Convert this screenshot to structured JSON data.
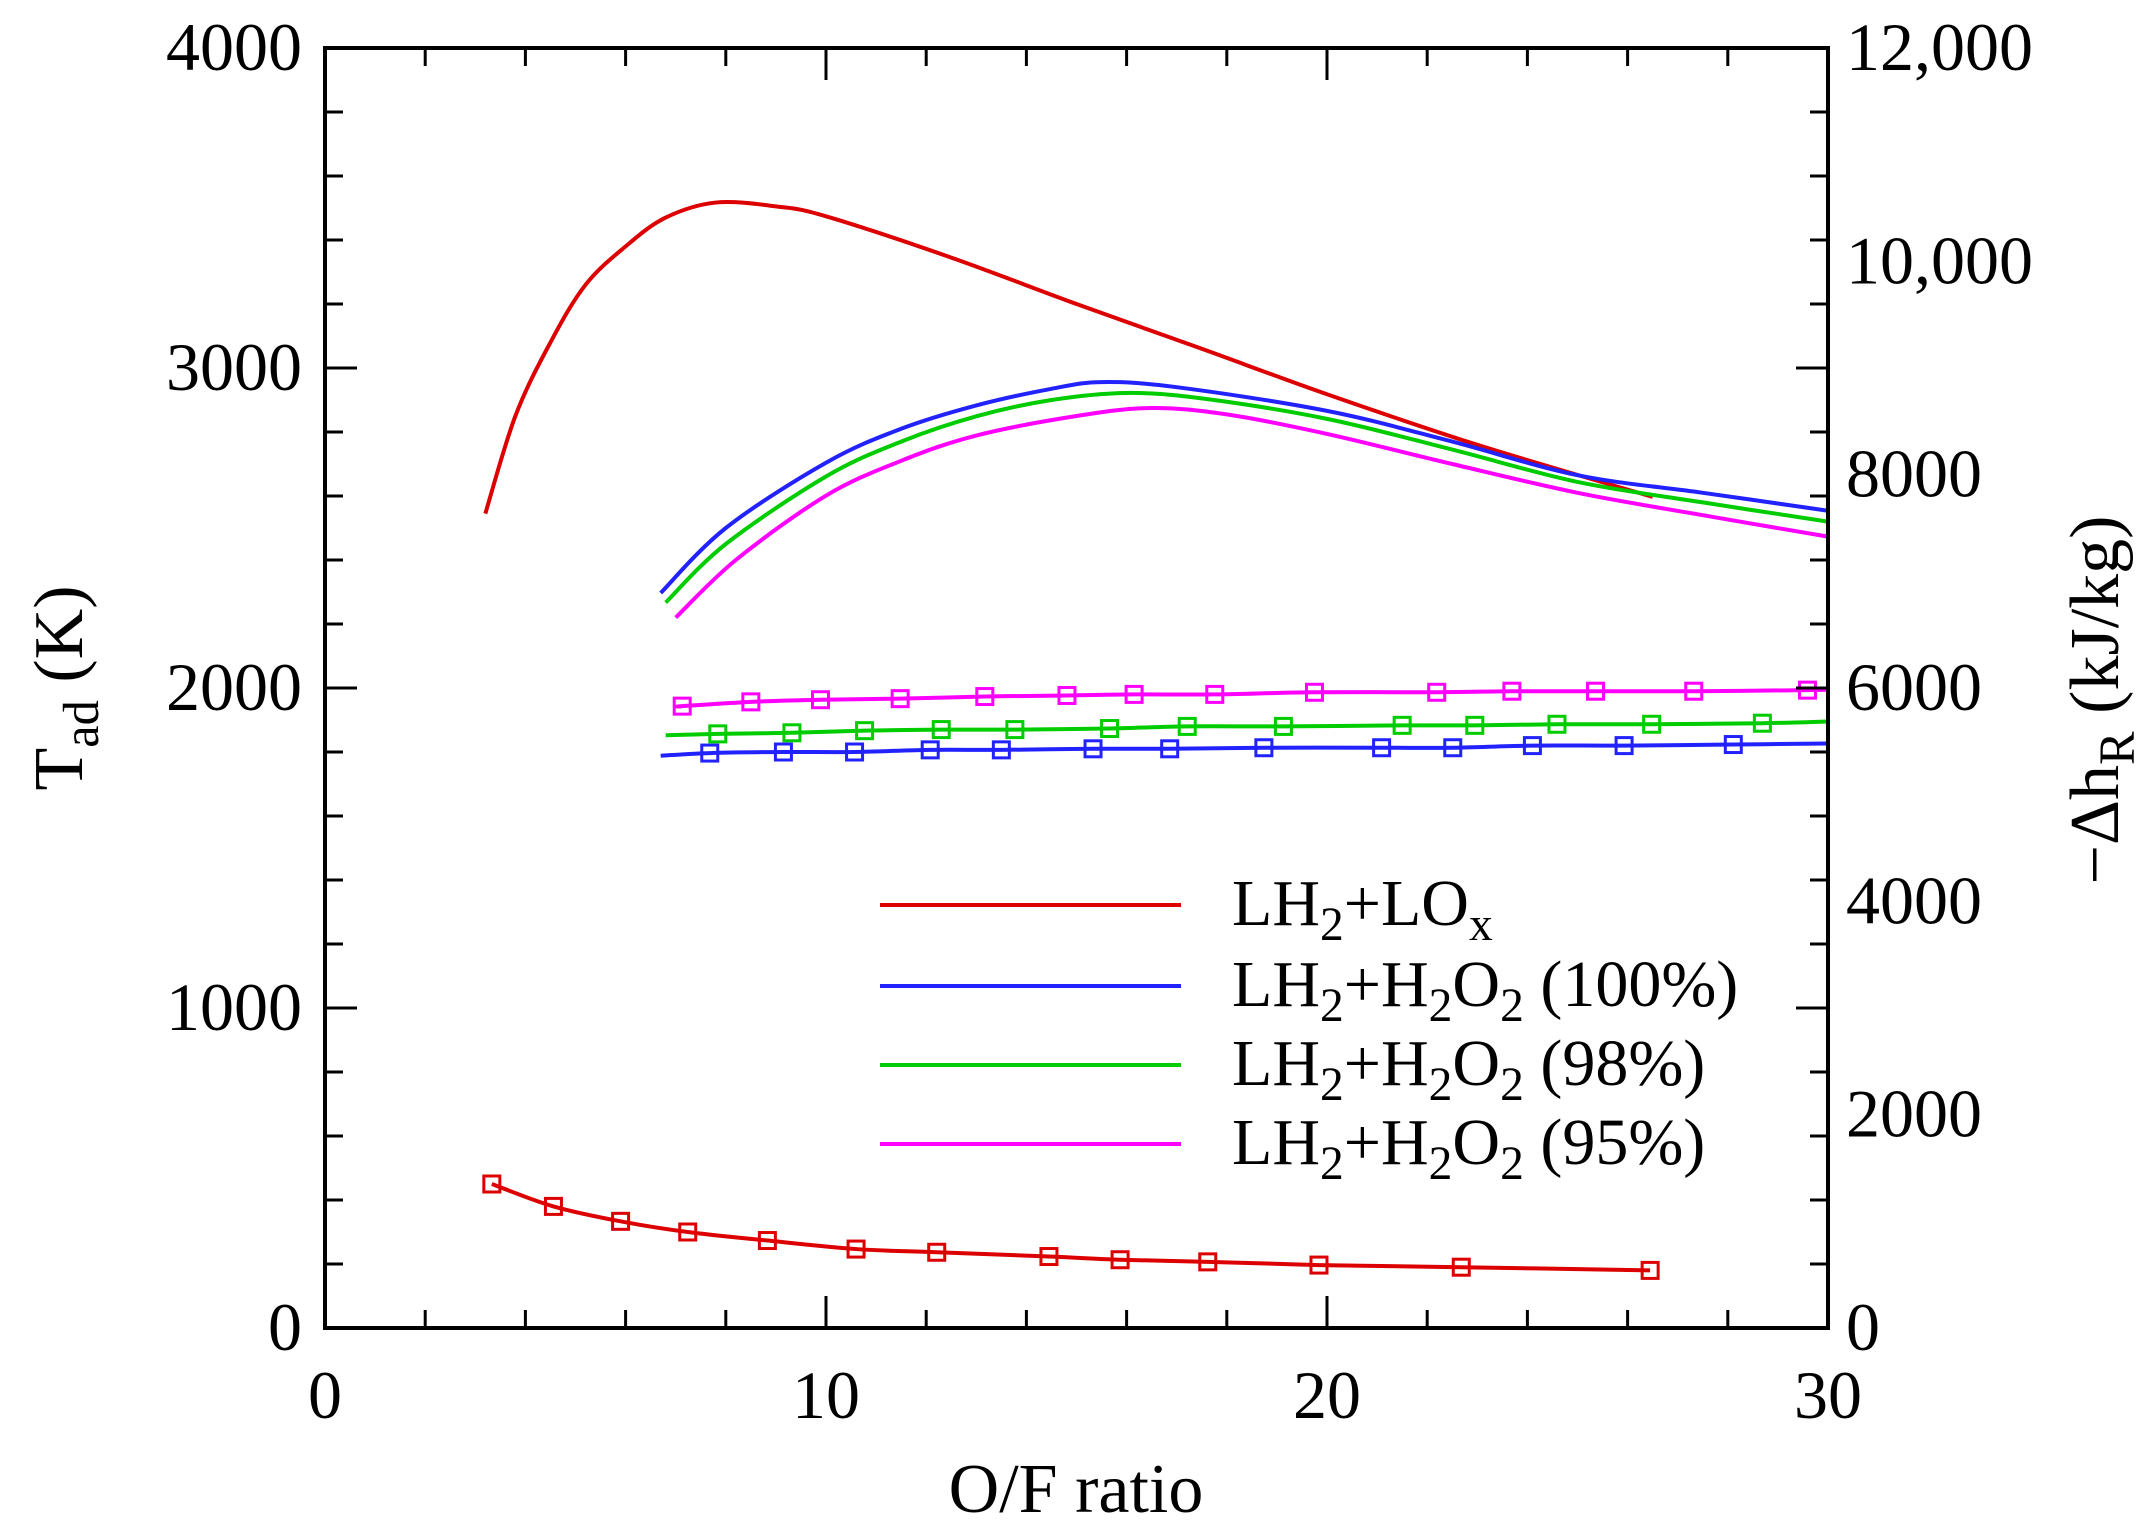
{
  "chart_data": {
    "type": "line",
    "xlabel": [
      [
        "O/F ratio",
        ""
      ]
    ],
    "ylabel_left": [
      [
        "T",
        ""
      ],
      [
        "ad",
        "sub"
      ],
      [
        " (K)",
        ""
      ]
    ],
    "ylabel_right": [
      [
        "−Δh",
        ""
      ],
      [
        "R",
        "sub"
      ],
      [
        " (kJ/kg)",
        ""
      ]
    ],
    "xlim": [
      0,
      30
    ],
    "ylim_left": [
      0,
      4000
    ],
    "ylim_right": [
      0,
      12000
    ],
    "x_ticks": [
      "0",
      "10",
      "20",
      "30"
    ],
    "x_tick_values": [
      0,
      10,
      20,
      30
    ],
    "x_minor_step": 2,
    "y_left_ticks": [
      "0",
      "1000",
      "2000",
      "3000",
      "4000"
    ],
    "y_left_tick_values": [
      0,
      1000,
      2000,
      3000,
      4000
    ],
    "y_left_minor_step": 200,
    "y_right_ticks": [
      "0",
      "2000",
      "4000",
      "6000",
      "8000",
      "10,000",
      "12,000"
    ],
    "y_right_tick_values": [
      0,
      2000,
      4000,
      6000,
      8000,
      10000,
      12000
    ],
    "grid": false,
    "legend_placement": "lower-right",
    "legend": [
      {
        "parts": [
          [
            "LH",
            ""
          ],
          [
            "2",
            "sub"
          ],
          [
            "+LO",
            ""
          ],
          [
            "x",
            "sub"
          ]
        ],
        "color": "#dd0000"
      },
      {
        "parts": [
          [
            "LH",
            ""
          ],
          [
            "2",
            "sub"
          ],
          [
            "+H",
            ""
          ],
          [
            "2",
            "sub"
          ],
          [
            "O",
            ""
          ],
          [
            "2",
            "sub"
          ],
          [
            " (100%)",
            ""
          ]
        ],
        "color": "#2222ff"
      },
      {
        "parts": [
          [
            "LH",
            ""
          ],
          [
            "2",
            "sub"
          ],
          [
            "+H",
            ""
          ],
          [
            "2",
            "sub"
          ],
          [
            "O",
            ""
          ],
          [
            "2",
            "sub"
          ],
          [
            " (98%)",
            ""
          ]
        ],
        "color": "#00cc00"
      },
      {
        "parts": [
          [
            "LH",
            ""
          ],
          [
            "2",
            "sub"
          ],
          [
            "+H",
            ""
          ],
          [
            "2",
            "sub"
          ],
          [
            "O",
            ""
          ],
          [
            "2",
            "sub"
          ],
          [
            " (95%)",
            ""
          ]
        ],
        "color": "#ff00ff"
      }
    ],
    "series": [
      {
        "id": "lh2-lox-tad",
        "axis": "left",
        "marker": "none",
        "color": "#dd0000",
        "x": [
          3.2,
          3.8,
          4.5,
          5.2,
          6.0,
          6.8,
          7.8,
          9.0,
          10.0,
          12.5,
          15.0,
          17.5,
          20.0,
          23.0,
          26.5
        ],
        "y": [
          2545,
          2850,
          3080,
          3260,
          3380,
          3470,
          3517,
          3505,
          3474,
          3345,
          3200,
          3060,
          2918,
          2760,
          2597
        ]
      },
      {
        "id": "lh2-h2o2-100-tad",
        "axis": "left",
        "marker": "none",
        "color": "#2222ff",
        "x": [
          6.7,
          8.0,
          10.0,
          11.5,
          13.0,
          14.5,
          15.5,
          17.0,
          20.0,
          22.5,
          25.0,
          27.5,
          30.0
        ],
        "y": [
          2297,
          2500,
          2704,
          2810,
          2883,
          2935,
          2956,
          2940,
          2866,
          2770,
          2665,
          2610,
          2554
        ]
      },
      {
        "id": "lh2-h2o2-98-tad",
        "axis": "left",
        "marker": "none",
        "color": "#00cc00",
        "x": [
          6.8,
          8.0,
          10.0,
          11.5,
          13.0,
          14.5,
          16.0,
          17.5,
          20.0,
          22.5,
          25.0,
          27.5,
          30.0
        ],
        "y": [
          2267,
          2450,
          2661,
          2770,
          2849,
          2900,
          2922,
          2905,
          2841,
          2745,
          2644,
          2580,
          2520
        ]
      },
      {
        "id": "lh2-h2o2-95-tad",
        "axis": "left",
        "marker": "none",
        "color": "#ff00ff",
        "x": [
          7.0,
          8.2,
          10.0,
          11.5,
          13.0,
          15.0,
          16.5,
          18.0,
          20.0,
          22.5,
          25.0,
          27.5,
          30.0
        ],
        "y": [
          2220,
          2400,
          2601,
          2710,
          2789,
          2850,
          2875,
          2855,
          2794,
          2700,
          2610,
          2540,
          2473
        ]
      },
      {
        "id": "lh2-lox-dh",
        "axis": "right",
        "marker": "square",
        "color": "#dd0000",
        "x": [
          3.33,
          4.56,
          5.9,
          7.24,
          8.83,
          10.6,
          12.21,
          14.45,
          15.87,
          17.62,
          19.84,
          22.68,
          26.45
        ],
        "y": [
          1350,
          1140,
          1000,
          900,
          820,
          740,
          710,
          670,
          640,
          620,
          590,
          570,
          540
        ]
      },
      {
        "id": "lh2-h2o2-100-dh",
        "axis": "right",
        "marker": "square",
        "color": "#2222ff",
        "line_x": [
          6.7,
          30.0
        ],
        "line_y": [
          5365,
          5480
        ],
        "x": [
          7.68,
          9.15,
          10.57,
          12.08,
          13.5,
          15.33,
          16.86,
          18.74,
          21.09,
          22.51,
          24.1,
          25.93,
          28.11
        ],
        "y": [
          5390,
          5400,
          5400,
          5420,
          5420,
          5430,
          5430,
          5440,
          5440,
          5440,
          5460,
          5460,
          5470
        ]
      },
      {
        "id": "lh2-h2o2-98-dh",
        "axis": "right",
        "marker": "square",
        "color": "#00cc00",
        "line_x": [
          6.8,
          30.0
        ],
        "line_y": [
          5557,
          5686
        ],
        "x": [
          7.84,
          9.32,
          10.77,
          12.3,
          13.77,
          15.66,
          17.21,
          19.13,
          21.5,
          22.95,
          24.59,
          26.48,
          28.69
        ],
        "y": [
          5570,
          5580,
          5600,
          5610,
          5610,
          5620,
          5640,
          5640,
          5650,
          5650,
          5660,
          5660,
          5670
        ]
      },
      {
        "id": "lh2-h2o2-95-dh",
        "axis": "right",
        "marker": "square",
        "color": "#ff00ff",
        "line_x": [
          7.13,
          30.0
        ],
        "line_y": [
          5827,
          5985
        ],
        "x": [
          7.13,
          8.5,
          9.89,
          11.48,
          13.17,
          14.81,
          16.15,
          17.76,
          19.75,
          22.19,
          23.69,
          25.36,
          27.32,
          29.59
        ],
        "y": [
          5830,
          5870,
          5890,
          5900,
          5920,
          5930,
          5940,
          5940,
          5960,
          5960,
          5970,
          5970,
          5970,
          5980
        ]
      }
    ]
  }
}
